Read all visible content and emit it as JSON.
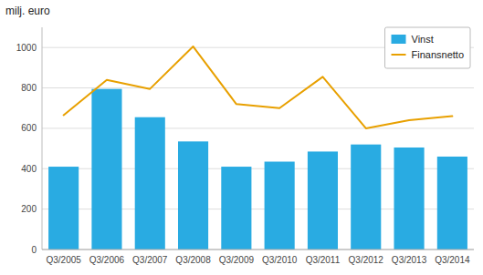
{
  "chart_data": {
    "type": "bar",
    "ylabel": "milj. euro",
    "categories": [
      "Q3/2005",
      "Q3/2006",
      "Q3/2007",
      "Q3/2008",
      "Q3/2009",
      "Q3/2010",
      "Q3/2011",
      "Q3/2012",
      "Q3/2013",
      "Q3/2014"
    ],
    "series": [
      {
        "name": "Vinst",
        "type": "bar",
        "color": "#29ABE2",
        "values": [
          410,
          795,
          655,
          535,
          410,
          435,
          485,
          520,
          505,
          460
        ]
      },
      {
        "name": "Finansnetto",
        "type": "line",
        "color": "#E8A000",
        "values": [
          665,
          840,
          795,
          1005,
          720,
          700,
          855,
          600,
          640,
          660
        ]
      }
    ],
    "ylim": [
      0,
      1100
    ],
    "yticks": [
      0,
      200,
      400,
      600,
      800,
      1000
    ],
    "grid": true,
    "legend": "upper right"
  }
}
